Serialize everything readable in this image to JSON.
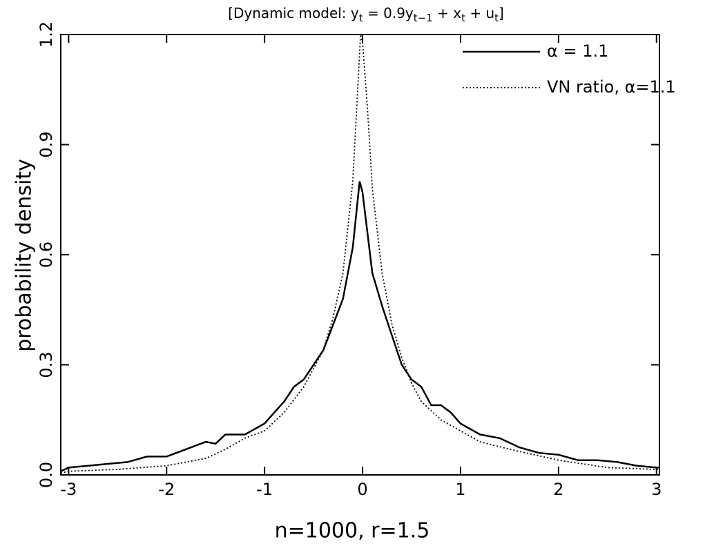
{
  "chart_data": {
    "type": "line",
    "title_parts": [
      "[Dynamic model:  y",
      "t",
      " = 0.9y",
      "t−1",
      " + x",
      "t",
      " + u",
      "t",
      "]"
    ],
    "xlabel": "n=1000,  r=1.5",
    "ylabel": "probability density",
    "xlim": [
      -3.08,
      3.03
    ],
    "ylim": [
      0,
      1.2
    ],
    "xticks": [
      -3,
      -2,
      -1,
      0,
      1,
      2,
      3
    ],
    "yticks": [
      {
        "value": 0,
        "label": "0.0"
      },
      0.3,
      0.6,
      0.9,
      1.2
    ],
    "legend": "upper right",
    "series": [
      {
        "name": "α = 1.1",
        "color": "#000000",
        "style": "solid",
        "x": [
          -3.08,
          -3.0,
          -2.8,
          -2.6,
          -2.4,
          -2.2,
          -2.0,
          -1.8,
          -1.6,
          -1.5,
          -1.4,
          -1.2,
          -1.0,
          -0.9,
          -0.8,
          -0.7,
          -0.6,
          -0.5,
          -0.4,
          -0.3,
          -0.2,
          -0.1,
          -0.03,
          0.0,
          0.1,
          0.2,
          0.3,
          0.4,
          0.5,
          0.6,
          0.7,
          0.8,
          0.9,
          1.0,
          1.2,
          1.4,
          1.6,
          1.8,
          2.0,
          2.2,
          2.4,
          2.6,
          2.8,
          3.0,
          3.03
        ],
        "values": [
          0.01,
          0.02,
          0.025,
          0.03,
          0.035,
          0.05,
          0.05,
          0.07,
          0.09,
          0.085,
          0.11,
          0.11,
          0.14,
          0.17,
          0.2,
          0.24,
          0.26,
          0.3,
          0.34,
          0.41,
          0.48,
          0.62,
          0.8,
          0.77,
          0.55,
          0.46,
          0.38,
          0.3,
          0.26,
          0.24,
          0.19,
          0.19,
          0.17,
          0.14,
          0.11,
          0.1,
          0.075,
          0.06,
          0.055,
          0.04,
          0.04,
          0.035,
          0.025,
          0.02,
          0.02
        ]
      },
      {
        "name": "VN ratio, α=1.1",
        "color": "#000000",
        "style": "dotted",
        "x": [
          -3.08,
          -3.0,
          -2.5,
          -2.0,
          -1.6,
          -1.4,
          -1.2,
          -1.0,
          -0.8,
          -0.6,
          -0.5,
          -0.4,
          -0.3,
          -0.2,
          -0.1,
          -0.05,
          -0.02,
          0.0,
          0.05,
          0.1,
          0.2,
          0.3,
          0.4,
          0.5,
          0.6,
          0.8,
          1.0,
          1.2,
          1.5,
          2.0,
          2.5,
          3.0,
          3.03
        ],
        "values": [
          0.005,
          0.01,
          0.015,
          0.025,
          0.045,
          0.07,
          0.1,
          0.12,
          0.17,
          0.24,
          0.29,
          0.34,
          0.43,
          0.55,
          0.8,
          1.05,
          1.2,
          1.18,
          1.0,
          0.78,
          0.55,
          0.41,
          0.32,
          0.25,
          0.2,
          0.15,
          0.12,
          0.09,
          0.07,
          0.04,
          0.02,
          0.015,
          0.015
        ]
      }
    ]
  }
}
